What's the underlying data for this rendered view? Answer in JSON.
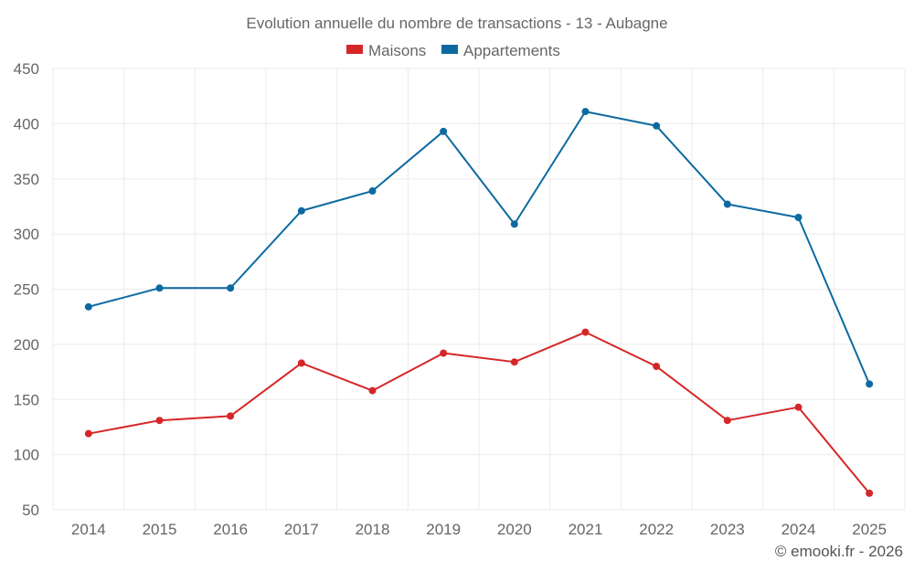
{
  "chart_data": {
    "type": "line",
    "title": "Evolution annuelle du nombre de transactions - 13 - Aubagne",
    "categories": [
      "2014",
      "2015",
      "2016",
      "2017",
      "2018",
      "2019",
      "2020",
      "2021",
      "2022",
      "2023",
      "2024",
      "2025"
    ],
    "series": [
      {
        "name": "Maisons",
        "color": "#d62728",
        "values": [
          119,
          131,
          135,
          183,
          158,
          192,
          184,
          211,
          180,
          131,
          143,
          65
        ]
      },
      {
        "name": "Appartements",
        "color": "#0d6aa1",
        "values": [
          234,
          251,
          251,
          321,
          339,
          393,
          309,
          411,
          398,
          327,
          315,
          164
        ]
      }
    ],
    "yticks": [
      "50",
      "100",
      "150",
      "200",
      "250",
      "300",
      "350",
      "400",
      "450"
    ],
    "ylim": [
      50,
      450
    ],
    "grid": true,
    "legend": "top-center",
    "xlabel": "",
    "ylabel": ""
  },
  "credit": "© emooki.fr - 2026"
}
